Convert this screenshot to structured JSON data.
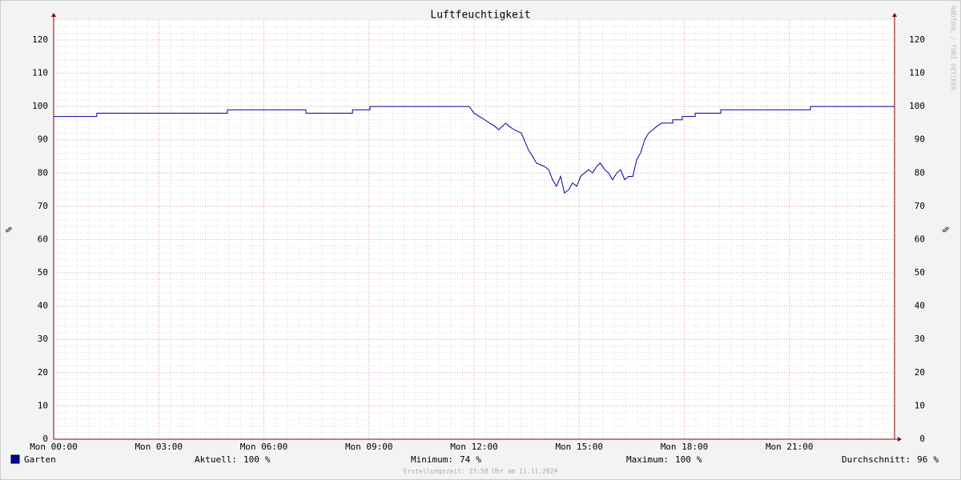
{
  "chart_data": {
    "type": "line",
    "title": "Luftfeuchtigkeit",
    "y_label": "%",
    "y2_label": "%",
    "watermark": "RRDTOOL / TOBI OETIKER",
    "footer": "Erstellungszeit: 23:58 Uhr am 11.11.2024",
    "xlim": [
      0,
      24
    ],
    "xticks": [
      {
        "value": 0,
        "label": "Mon 00:00"
      },
      {
        "value": 3,
        "label": "Mon 03:00"
      },
      {
        "value": 6,
        "label": "Mon 06:00"
      },
      {
        "value": 9,
        "label": "Mon 09:00"
      },
      {
        "value": 12,
        "label": "Mon 12:00"
      },
      {
        "value": 15,
        "label": "Mon 15:00"
      },
      {
        "value": 18,
        "label": "Mon 18:00"
      },
      {
        "value": 21,
        "label": "Mon 21:00"
      }
    ],
    "ylim": [
      0,
      126
    ],
    "yticks": [
      0,
      10,
      20,
      30,
      40,
      50,
      60,
      70,
      80,
      90,
      100,
      110,
      120
    ],
    "grid": true,
    "x": [
      0,
      1.23,
      1.23,
      4.96,
      4.96,
      7.2,
      7.2,
      8.53,
      8.53,
      9.03,
      9.03,
      11.86,
      12.0,
      12.15,
      12.3,
      12.45,
      12.6,
      12.7,
      12.8,
      12.9,
      13.0,
      13.15,
      13.35,
      13.55,
      13.67,
      13.78,
      14.0,
      14.13,
      14.24,
      14.35,
      14.47,
      14.58,
      14.7,
      14.81,
      14.93,
      15.04,
      15.15,
      15.27,
      15.38,
      15.5,
      15.6,
      15.73,
      15.84,
      15.95,
      16.07,
      16.18,
      16.3,
      16.41,
      16.53,
      16.64,
      16.75,
      16.87,
      16.98,
      17.1,
      17.21,
      17.35,
      17.67,
      17.67,
      17.94,
      17.94,
      18.31,
      18.31,
      19.04,
      19.04,
      21.6,
      21.6,
      24
    ],
    "series": [
      {
        "name": "Garten",
        "color": "#0000a0",
        "values": [
          97,
          97,
          98,
          98,
          99,
          99,
          98,
          98,
          99,
          99,
          100,
          100,
          98,
          97,
          96,
          95,
          94,
          93,
          94,
          95,
          94,
          93,
          92,
          87,
          85,
          83,
          82,
          81,
          78,
          76,
          79,
          74,
          75,
          77,
          76,
          79,
          80,
          81,
          80,
          82,
          83,
          81,
          80,
          78,
          80,
          81,
          78,
          79,
          79,
          84,
          86,
          90,
          92,
          93,
          94,
          95,
          95,
          96,
          96,
          97,
          97,
          98,
          98,
          99,
          99,
          100,
          100
        ]
      }
    ],
    "stats": [
      {
        "label": "Aktuell:",
        "value": 100,
        "unit": "%"
      },
      {
        "label": "Minimum:",
        "value": 74,
        "unit": "%"
      },
      {
        "label": "Maximum:",
        "value": 100,
        "unit": "%"
      },
      {
        "label": "Durchschnitt:",
        "value": 96,
        "unit": "%"
      }
    ]
  }
}
